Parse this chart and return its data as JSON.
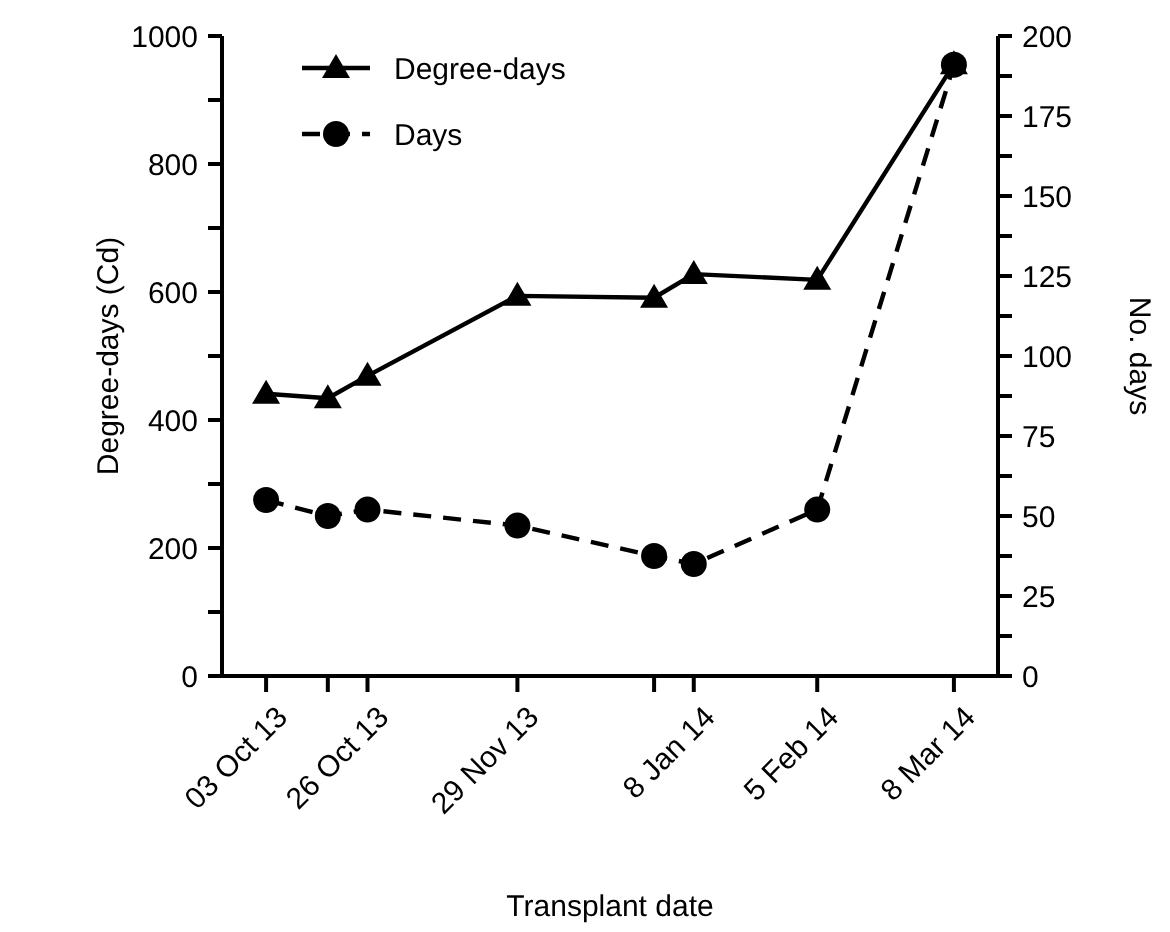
{
  "chart_data": {
    "type": "line",
    "xlabel": "Transplant date",
    "ylabel": "Degree-days (Cd)",
    "y2label": "No. days",
    "x": [
      "2013-10-03",
      "2013-10-17",
      "2013-10-26",
      "2013-11-29",
      "2013-12-30",
      "2014-01-08",
      "2014-02-05",
      "2014-03-08"
    ],
    "series": [
      {
        "name": "Degree-days",
        "color": "#000000",
        "marker": "triangle",
        "line_style": "solid",
        "values": [
          441,
          434,
          469,
          594,
          591,
          628,
          619,
          956
        ]
      },
      {
        "name": "Days",
        "color": "#000000",
        "marker": "circle",
        "line_style": "dashed",
        "axis": "y2",
        "values": [
          55,
          50,
          52,
          47,
          37.5,
          35,
          52,
          191
        ]
      }
    ],
    "xlim": [
      "2013-09-23",
      "2014-03-18"
    ],
    "xticks": [
      {
        "value": "2013-10-03",
        "label": "03 Oct 13"
      },
      {
        "value": "2013-10-17",
        "label": null
      },
      {
        "value": "2013-10-26",
        "label": "26 Oct 13"
      },
      {
        "value": "2013-11-29",
        "label": "29 Nov 13"
      },
      {
        "value": "2013-12-30",
        "label": null
      },
      {
        "value": "2014-01-08",
        "label": "8 Jan 14"
      },
      {
        "value": "2014-02-05",
        "label": "5 Feb 14"
      },
      {
        "value": "2014-03-08",
        "label": "8 Mar 14"
      }
    ],
    "ylim": [
      0,
      1000
    ],
    "yticks": [
      0,
      {
        "value": 100,
        "label": null
      },
      200,
      {
        "value": 300,
        "label": null
      },
      400,
      {
        "value": 500,
        "label": null
      },
      600,
      {
        "value": 700,
        "label": null
      },
      800,
      {
        "value": 900,
        "label": null
      },
      1000
    ],
    "y2lim": [
      0,
      200
    ],
    "y2ticks": [
      0,
      {
        "value": 12.5,
        "label": null
      },
      25,
      {
        "value": 37.5,
        "label": null
      },
      50,
      {
        "value": 62.5,
        "label": null
      },
      75,
      {
        "value": 87.5,
        "label": null
      },
      100,
      {
        "value": 112.5,
        "label": null
      },
      125,
      {
        "value": 137.5,
        "label": null
      },
      150,
      {
        "value": 162.5,
        "label": null
      },
      175,
      {
        "value": 187.5,
        "label": null
      },
      200
    ],
    "grid": false,
    "legend": "top left"
  }
}
